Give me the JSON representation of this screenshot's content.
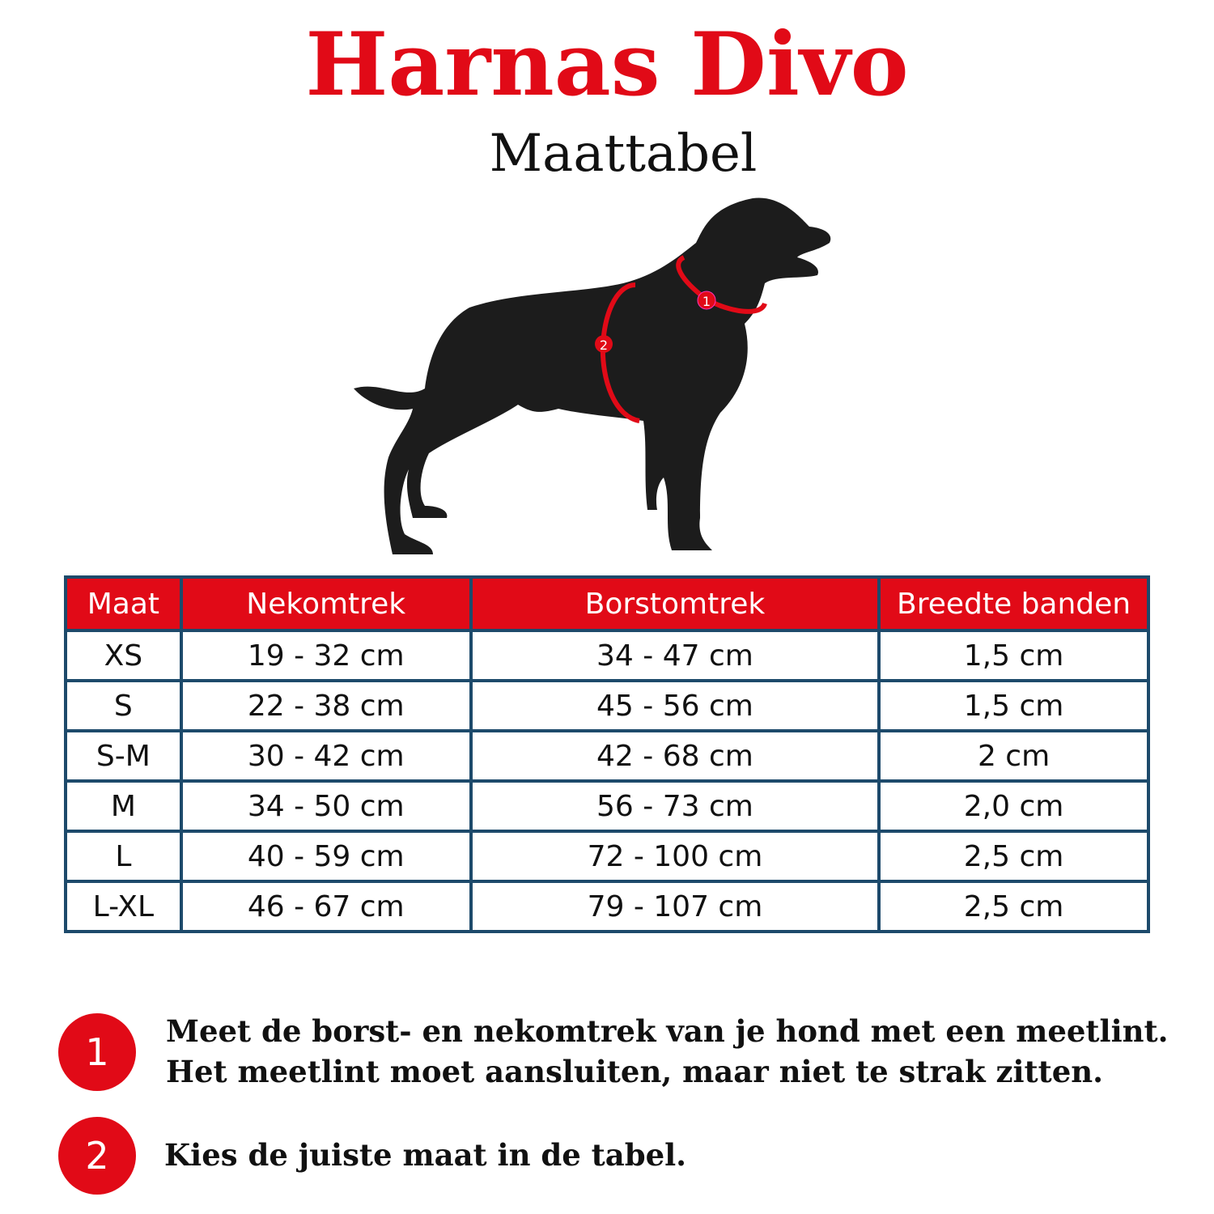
{
  "header": {
    "title": "Harnas Divo",
    "subtitle": "Maattabel"
  },
  "illustration": {
    "markers": [
      "1",
      "2"
    ],
    "marker_color": "#e10a17"
  },
  "table": {
    "columns": [
      "Maat",
      "Nekomtrek",
      "Borstomtrek",
      "Breedte banden"
    ],
    "rows": [
      [
        "XS",
        "19 - 32 cm",
        "34 - 47 cm",
        "1,5 cm"
      ],
      [
        "S",
        "22 - 38 cm",
        "45 - 56 cm",
        "1,5 cm"
      ],
      [
        "S-M",
        "30 - 42 cm",
        "42 - 68 cm",
        "2 cm"
      ],
      [
        "M",
        "34 - 50 cm",
        "56 - 73 cm",
        "2,0 cm"
      ],
      [
        "L",
        "40 - 59 cm",
        "72 - 100 cm",
        "2,5 cm"
      ],
      [
        "L-XL",
        "46 - 67 cm",
        "79 - 107 cm",
        "2,5 cm"
      ]
    ],
    "header_color": "#e10a17",
    "border_color": "#1d4a6b"
  },
  "steps": [
    {
      "number": "1",
      "lines": [
        "Meet de borst- en nekomtrek van je hond met een meetlint.",
        "Het meetlint moet aansluiten, maar niet te strak zitten."
      ]
    },
    {
      "number": "2",
      "lines": [
        "Kies de juiste maat in de tabel."
      ]
    }
  ]
}
